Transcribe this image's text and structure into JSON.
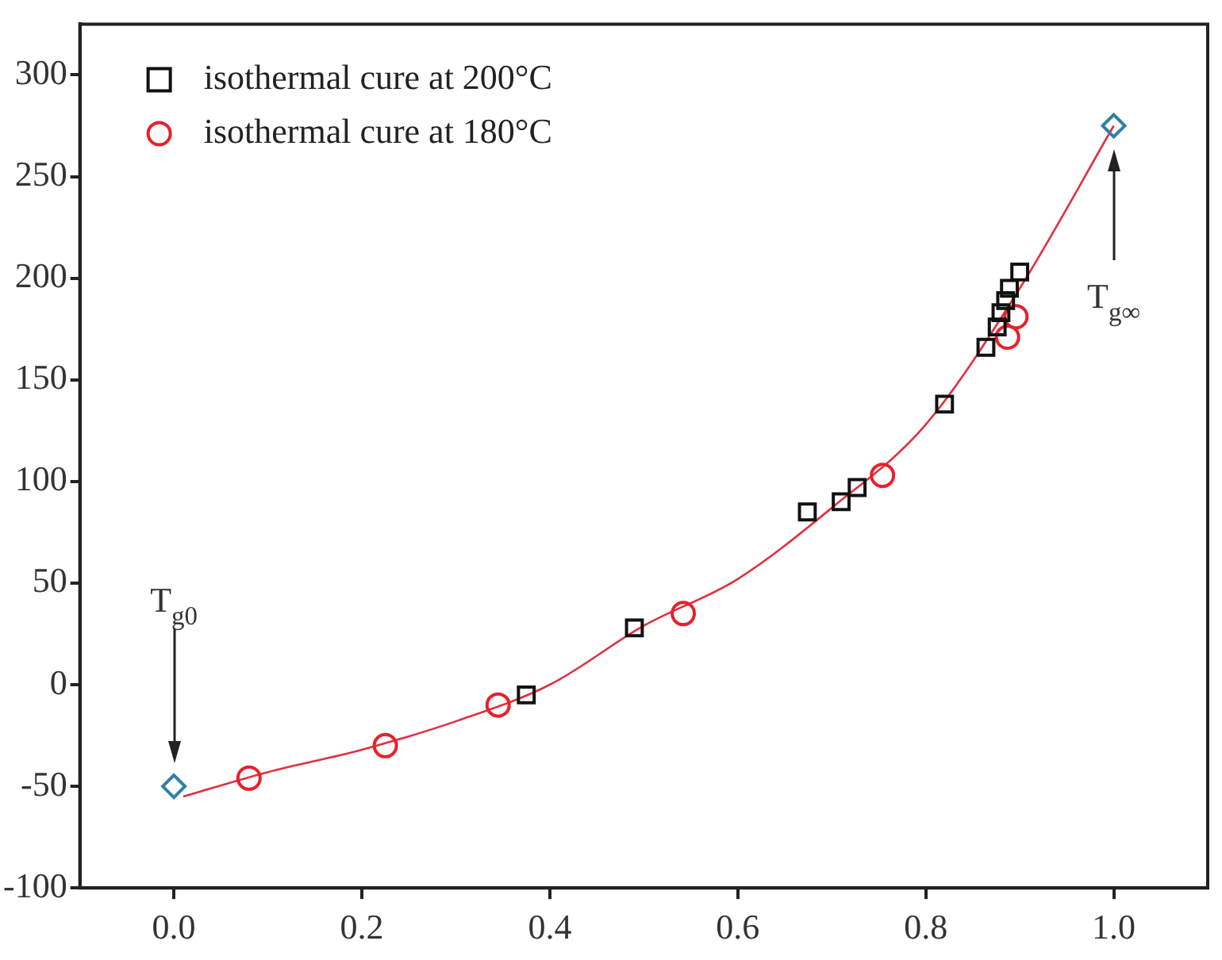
{
  "chart_data": {
    "type": "scatter",
    "xlim": [
      -0.1,
      1.1
    ],
    "xticks": [
      {
        "value": 0,
        "label": "0.0"
      },
      0.2,
      0.4,
      0.6,
      0.8,
      {
        "value": 1,
        "label": "1.0"
      }
    ],
    "ylim": [
      -100,
      325
    ],
    "yticks": [
      -100,
      -50,
      0,
      50,
      100,
      150,
      200,
      250,
      300
    ],
    "grid": false,
    "legend": "top left",
    "series": [
      {
        "name": "isothermal cure at 200°C",
        "color": "#111111",
        "marker": "square",
        "x": [
          0.375,
          0.49,
          0.674,
          0.71,
          0.727,
          0.82,
          0.864,
          0.876,
          0.88,
          0.885,
          0.889,
          0.9
        ],
        "values": [
          -5,
          28,
          85,
          90,
          97,
          138,
          166,
          176,
          183,
          189,
          195,
          203
        ]
      },
      {
        "name": "isothermal cure at 180°C",
        "color": "#e8202a",
        "marker": "circle",
        "x": [
          0.08,
          0.225,
          0.345,
          0.542,
          0.754,
          0.887,
          0.896
        ],
        "values": [
          -46,
          -30,
          -10,
          35,
          103,
          171,
          181
        ]
      },
      {
        "color": "#2f7fa8",
        "marker": "diamond",
        "x": [
          0,
          1
        ],
        "values": [
          -50,
          275
        ]
      },
      {
        "type": "line",
        "color": "#e03040",
        "marker": "none",
        "line_style": "solid",
        "x": [
          0.01,
          0.1,
          0.2,
          0.3,
          0.4,
          0.5,
          0.6,
          0.7,
          0.8,
          0.9,
          1.0
        ],
        "values": [
          -55,
          -43,
          -32,
          -18,
          0,
          29,
          52,
          87,
          128,
          195,
          275
        ]
      }
    ],
    "annotations": [
      "T$_{g0}$",
      "T$_{g∞}$"
    ]
  }
}
